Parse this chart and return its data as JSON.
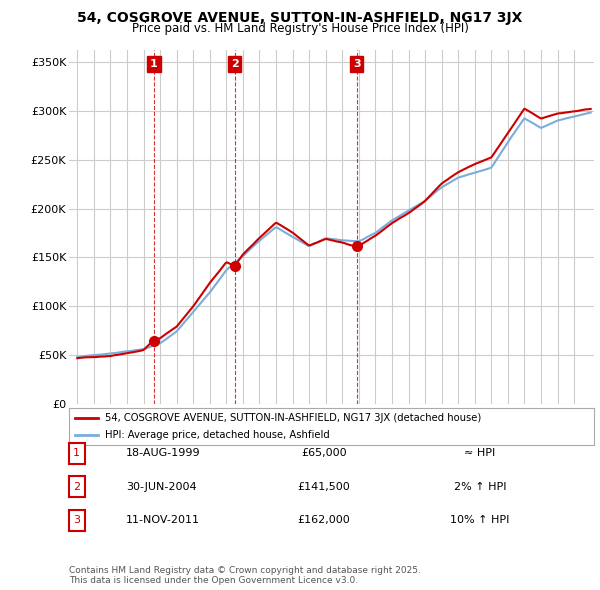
{
  "title": "54, COSGROVE AVENUE, SUTTON-IN-ASHFIELD, NG17 3JX",
  "subtitle": "Price paid vs. HM Land Registry's House Price Index (HPI)",
  "yticks": [
    0,
    50000,
    100000,
    150000,
    200000,
    250000,
    300000,
    350000
  ],
  "ytick_labels": [
    "£0",
    "£50K",
    "£100K",
    "£150K",
    "£200K",
    "£250K",
    "£300K",
    "£350K"
  ],
  "xticks": [
    1995,
    1996,
    1997,
    1998,
    1999,
    2000,
    2001,
    2002,
    2003,
    2004,
    2005,
    2006,
    2007,
    2008,
    2009,
    2010,
    2011,
    2012,
    2013,
    2014,
    2015,
    2016,
    2017,
    2018,
    2019,
    2020,
    2021,
    2022,
    2023,
    2024,
    2025
  ],
  "house_color": "#cc0000",
  "hpi_color": "#7aadda",
  "sale_label_bg": "#cc0000",
  "sale_label_color": "white",
  "grid_color": "#cccccc",
  "sales": [
    {
      "num": 1,
      "date_x": 1999.63,
      "price": 65000,
      "label": "1"
    },
    {
      "num": 2,
      "date_x": 2004.5,
      "price": 141500,
      "label": "2"
    },
    {
      "num": 3,
      "date_x": 2011.87,
      "price": 162000,
      "label": "3"
    }
  ],
  "legend_house_label": "54, COSGROVE AVENUE, SUTTON-IN-ASHFIELD, NG17 3JX (detached house)",
  "legend_hpi_label": "HPI: Average price, detached house, Ashfield",
  "table_rows": [
    {
      "num": "1",
      "date": "18-AUG-1999",
      "price": "£65,000",
      "hpi": "≈ HPI"
    },
    {
      "num": "2",
      "date": "30-JUN-2004",
      "price": "£141,500",
      "hpi": "2% ↑ HPI"
    },
    {
      "num": "3",
      "date": "11-NOV-2011",
      "price": "£162,000",
      "hpi": "10% ↑ HPI"
    }
  ],
  "footnote": "Contains HM Land Registry data © Crown copyright and database right 2025.\nThis data is licensed under the Open Government Licence v3.0.",
  "background_color": "#ffffff"
}
